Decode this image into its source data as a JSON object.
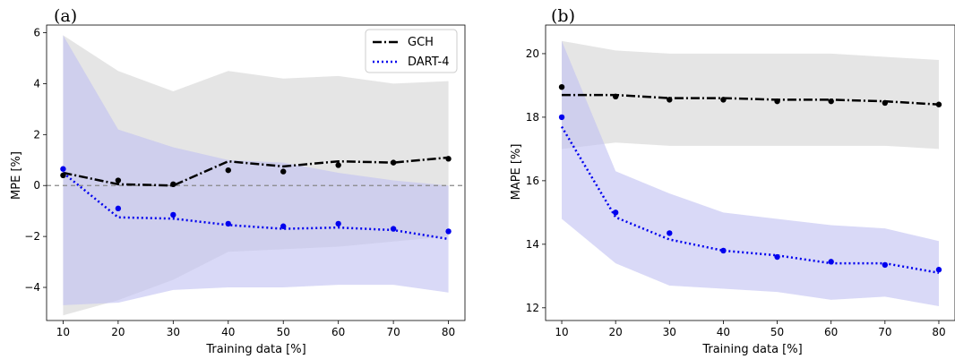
{
  "chart_data": [
    {
      "type": "line",
      "panel_label": "(a)",
      "xlabel": "Training data [%]",
      "ylabel": "MPE [%]",
      "x": [
        10,
        20,
        30,
        40,
        50,
        60,
        70,
        80
      ],
      "xticks": [
        10,
        20,
        30,
        40,
        50,
        60,
        70,
        80
      ],
      "xlim": [
        7,
        83
      ],
      "yticks": [
        -4,
        -2,
        0,
        2,
        4,
        6
      ],
      "ylim": [
        -5.3,
        6.3
      ],
      "reference_line": {
        "y": 0,
        "style": "dashed",
        "color": "#888888"
      },
      "legend": {
        "position": "top-right"
      },
      "series": [
        {
          "name": "GCH",
          "color": "#000000",
          "linestyle": "dashdot",
          "line": [
            0.5,
            0.05,
            0.0,
            0.95,
            0.75,
            0.95,
            0.9,
            1.1
          ],
          "points": [
            0.4,
            0.2,
            0.05,
            0.6,
            0.55,
            0.8,
            0.9,
            1.05
          ],
          "band_upper": [
            5.9,
            4.5,
            3.7,
            4.5,
            4.2,
            4.3,
            4.0,
            4.1
          ],
          "band_lower": [
            -5.1,
            -4.5,
            -3.7,
            -2.6,
            -2.5,
            -2.4,
            -2.2,
            -2.0
          ],
          "band_color": "#d3d3d3"
        },
        {
          "name": "DART-4",
          "color": "#0000ee",
          "linestyle": "dotted",
          "line": [
            0.5,
            -1.25,
            -1.3,
            -1.55,
            -1.7,
            -1.65,
            -1.75,
            -2.1
          ],
          "points": [
            0.65,
            -0.9,
            -1.15,
            -1.5,
            -1.6,
            -1.5,
            -1.7,
            -1.8
          ],
          "band_upper": [
            5.9,
            2.2,
            1.5,
            1.0,
            0.9,
            0.5,
            0.2,
            0.0
          ],
          "band_lower": [
            -4.7,
            -4.6,
            -4.1,
            -4.0,
            -4.0,
            -3.9,
            -3.9,
            -4.2
          ],
          "band_color": "#bfbff2"
        }
      ]
    },
    {
      "type": "line",
      "panel_label": "(b)",
      "xlabel": "Training data [%]",
      "ylabel": "MAPE [%]",
      "x": [
        10,
        20,
        30,
        40,
        50,
        60,
        70,
        80
      ],
      "xticks": [
        10,
        20,
        30,
        40,
        50,
        60,
        70,
        80
      ],
      "xlim": [
        7,
        83
      ],
      "yticks": [
        12,
        14,
        16,
        18,
        20
      ],
      "ylim": [
        11.6,
        20.9
      ],
      "series": [
        {
          "name": "GCH",
          "color": "#000000",
          "linestyle": "dashdot",
          "line": [
            18.7,
            18.7,
            18.6,
            18.6,
            18.55,
            18.55,
            18.5,
            18.4
          ],
          "points": [
            18.95,
            18.65,
            18.55,
            18.55,
            18.5,
            18.5,
            18.45,
            18.4
          ],
          "band_upper": [
            20.4,
            20.1,
            20.0,
            20.0,
            20.0,
            20.0,
            19.9,
            19.8
          ],
          "band_lower": [
            17.0,
            17.2,
            17.1,
            17.1,
            17.1,
            17.1,
            17.1,
            17.0
          ],
          "band_color": "#d3d3d3"
        },
        {
          "name": "DART-4",
          "color": "#0000ee",
          "linestyle": "dotted",
          "line": [
            17.7,
            14.85,
            14.15,
            13.8,
            13.65,
            13.4,
            13.4,
            13.1
          ],
          "points": [
            18.0,
            15.0,
            14.35,
            13.8,
            13.6,
            13.45,
            13.35,
            13.2
          ],
          "band_upper": [
            20.4,
            16.3,
            15.6,
            15.0,
            14.8,
            14.6,
            14.5,
            14.1
          ],
          "band_lower": [
            14.8,
            13.4,
            12.7,
            12.6,
            12.5,
            12.25,
            12.35,
            12.05
          ],
          "band_color": "#bfbff2"
        }
      ]
    }
  ]
}
